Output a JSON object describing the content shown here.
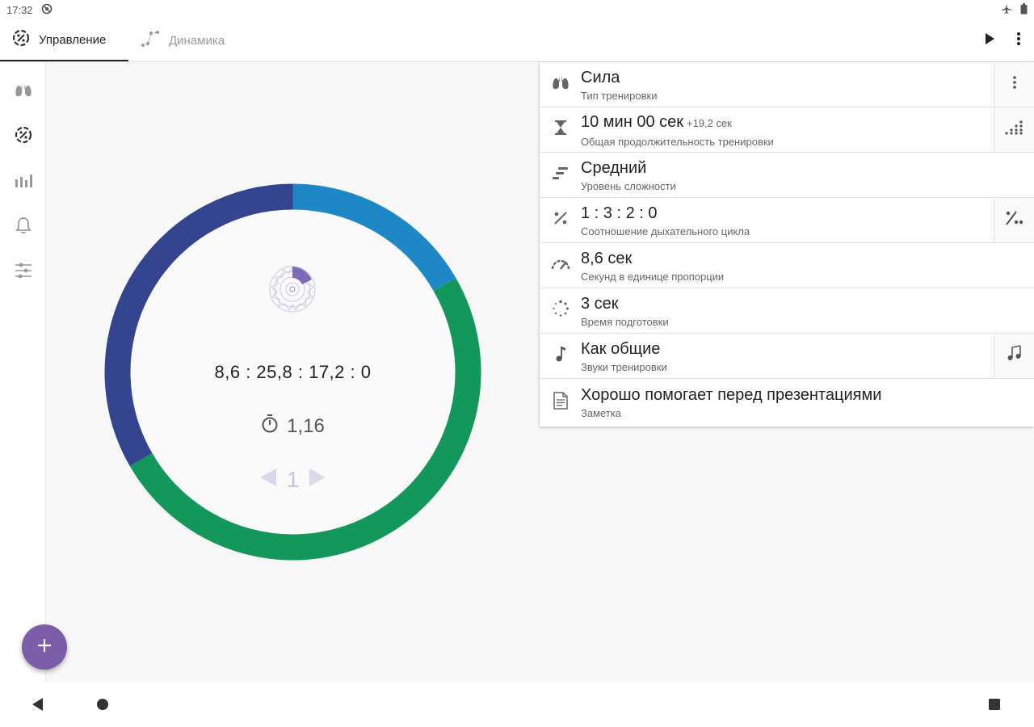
{
  "status_bar": {
    "time": "17:32"
  },
  "tabs": [
    {
      "label": "Управление",
      "icon": "ratio-circle-icon",
      "active": true
    },
    {
      "label": "Динамика",
      "icon": "dynamics-icon",
      "active": false
    }
  ],
  "sidebar": {
    "items": [
      "lungs-icon",
      "ratio-circle-icon",
      "bar-chart-icon",
      "bell-icon",
      "sliders-icon"
    ]
  },
  "center": {
    "ratio_seconds": "8,6 : 25,8 : 17,2 : 0",
    "timer_value": "1,16",
    "page_number": "1",
    "ring_colors": {
      "inhale": "#1e88c7",
      "hold": "#13975a",
      "exhale": "#35448e"
    }
  },
  "settings": [
    {
      "primary": "Сила",
      "secondary": "Тип тренировки",
      "icon": "lungs-icon",
      "action": "more-vert-icon"
    },
    {
      "primary": "10 мин 00 сек",
      "extra": "+19,2 сек",
      "secondary": "Общая продолжительность тренировки",
      "icon": "hourglass-icon",
      "action": "dots-grid-icon"
    },
    {
      "primary": "Средний",
      "secondary": "Уровень сложности",
      "icon": "difficulty-icon"
    },
    {
      "primary": "1 : 3 : 2 : 0",
      "secondary": "Соотношение дыхательного цикла",
      "icon": "percent-icon",
      "action": "percent-dots-icon"
    },
    {
      "primary": "8,6 сек",
      "secondary": "Секунд в единице пропорции",
      "icon": "speedometer-icon"
    },
    {
      "primary": "3 сек",
      "secondary": "Время подготовки",
      "icon": "loading-icon"
    },
    {
      "primary": "Как общие",
      "secondary": "Звуки тренировки",
      "icon": "music-note-icon",
      "action": "music-notes-icon"
    },
    {
      "primary": "Хорошо помогает перед презентациями",
      "secondary": "Заметка",
      "icon": "note-icon"
    }
  ],
  "accent_color": "#7b5ea7"
}
